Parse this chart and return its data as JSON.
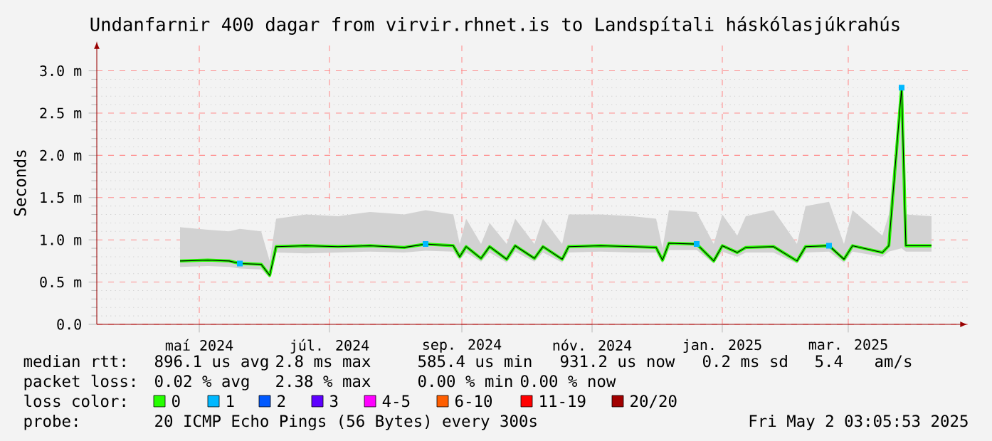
{
  "chart_data": {
    "type": "line",
    "title": "Undanfarnir 400 dagar from virvir.rhnet.is to Landspítali háskólasjúkrahús",
    "ylabel": "Seconds",
    "x": [
      "2024-04-22",
      "2024-05-05",
      "2024-05-15",
      "2024-05-20",
      "2024-05-30",
      "2024-06-03",
      "2024-06-06",
      "2024-06-20",
      "2024-07-05",
      "2024-07-20",
      "2024-08-05",
      "2024-08-15",
      "2024-08-28",
      "2024-08-31",
      "2024-09-03",
      "2024-09-10",
      "2024-09-14",
      "2024-09-22",
      "2024-09-26",
      "2024-10-05",
      "2024-10-09",
      "2024-10-18",
      "2024-10-21",
      "2024-11-05",
      "2024-11-20",
      "2024-12-01",
      "2024-12-04",
      "2024-12-07",
      "2024-12-20",
      "2024-12-28",
      "2025-01-01",
      "2025-01-08",
      "2025-01-12",
      "2025-01-25",
      "2025-02-05",
      "2025-02-09",
      "2025-02-20",
      "2025-02-27",
      "2025-03-03",
      "2025-03-17",
      "2025-03-20",
      "2025-03-26",
      "2025-03-28",
      "2025-04-09"
    ],
    "series": [
      {
        "name": "0",
        "color": "#26ff00",
        "values": [
          0.75,
          0.76,
          0.75,
          0.72,
          0.71,
          0.58,
          0.92,
          0.93,
          0.92,
          0.93,
          0.91,
          0.95,
          0.93,
          0.8,
          0.92,
          0.78,
          0.92,
          0.77,
          0.93,
          0.78,
          0.92,
          0.77,
          0.92,
          0.93,
          0.92,
          0.91,
          0.76,
          0.96,
          0.95,
          0.75,
          0.93,
          0.85,
          0.91,
          0.92,
          0.75,
          0.92,
          0.93,
          0.77,
          0.93,
          0.85,
          0.93,
          2.8,
          0.93,
          0.93
        ],
        "lower": [
          0.68,
          0.69,
          0.68,
          0.66,
          0.65,
          0.55,
          0.85,
          0.84,
          0.85,
          0.86,
          0.85,
          0.87,
          0.86,
          0.76,
          0.85,
          0.74,
          0.85,
          0.73,
          0.86,
          0.74,
          0.85,
          0.73,
          0.85,
          0.86,
          0.85,
          0.85,
          0.72,
          0.88,
          0.88,
          0.72,
          0.86,
          0.8,
          0.85,
          0.85,
          0.72,
          0.85,
          0.86,
          0.73,
          0.86,
          0.8,
          0.86,
          0.9,
          0.86,
          0.86
        ],
        "upper": [
          1.15,
          1.12,
          1.1,
          1.13,
          1.1,
          0.75,
          1.25,
          1.3,
          1.28,
          1.33,
          1.3,
          1.35,
          1.3,
          0.95,
          1.25,
          0.95,
          1.2,
          0.95,
          1.25,
          0.95,
          1.25,
          0.95,
          1.3,
          1.3,
          1.28,
          1.25,
          0.9,
          1.35,
          1.33,
          0.95,
          1.3,
          1.05,
          1.28,
          1.35,
          0.95,
          1.4,
          1.45,
          0.95,
          1.35,
          1.05,
          1.3,
          2.82,
          1.3,
          1.28
        ]
      },
      {
        "name": "1",
        "color": "#00b8ff",
        "type": "scatter",
        "marker": "square",
        "x": [
          "2024-05-20",
          "2024-08-15",
          "2024-12-20",
          "2025-02-20",
          "2025-03-26"
        ],
        "values": [
          0.72,
          0.95,
          0.95,
          0.93,
          2.8
        ]
      },
      {
        "name": "2",
        "color": "#0059ff",
        "type": "scatter",
        "values": [
          null,
          null,
          null,
          null,
          null,
          null,
          null,
          null,
          null,
          null,
          null,
          null,
          null,
          null,
          null,
          null,
          null,
          null,
          null,
          null,
          null,
          null,
          null,
          null,
          null,
          null,
          null,
          null,
          null,
          null,
          null,
          null,
          null,
          null,
          null,
          null,
          null,
          null,
          null,
          null,
          null,
          null,
          null,
          null
        ]
      },
      {
        "name": "3",
        "color": "#5e00ff",
        "type": "scatter",
        "values": [
          null,
          null,
          null,
          null,
          null,
          null,
          null,
          null,
          null,
          null,
          null,
          null,
          null,
          null,
          null,
          null,
          null,
          null,
          null,
          null,
          null,
          null,
          null,
          null,
          null,
          null,
          null,
          null,
          null,
          null,
          null,
          null,
          null,
          null,
          null,
          null,
          null,
          null,
          null,
          null,
          null,
          null,
          null,
          null
        ]
      },
      {
        "name": "4-5",
        "color": "#ff00ff",
        "type": "scatter",
        "values": [
          null,
          null,
          null,
          null,
          null,
          null,
          null,
          null,
          null,
          null,
          null,
          null,
          null,
          null,
          null,
          null,
          null,
          null,
          null,
          null,
          null,
          null,
          null,
          null,
          null,
          null,
          null,
          null,
          null,
          null,
          null,
          null,
          null,
          null,
          null,
          null,
          null,
          null,
          null,
          null,
          null,
          null,
          null,
          null
        ]
      },
      {
        "name": "6-10",
        "color": "#ff5e00",
        "type": "scatter",
        "values": [
          null,
          null,
          null,
          null,
          null,
          null,
          null,
          null,
          null,
          null,
          null,
          null,
          null,
          null,
          null,
          null,
          null,
          null,
          null,
          null,
          null,
          null,
          null,
          null,
          null,
          null,
          null,
          null,
          null,
          null,
          null,
          null,
          null,
          null,
          null,
          null,
          null,
          null,
          null,
          null,
          null,
          null,
          null,
          null
        ]
      },
      {
        "name": "11-19",
        "color": "#ff0000",
        "type": "scatter",
        "values": [
          null,
          null,
          null,
          null,
          null,
          null,
          null,
          null,
          null,
          null,
          null,
          null,
          null,
          null,
          null,
          null,
          null,
          null,
          null,
          null,
          null,
          null,
          null,
          null,
          null,
          null,
          null,
          null,
          null,
          null,
          null,
          null,
          null,
          null,
          null,
          null,
          null,
          null,
          null,
          null,
          null,
          null,
          null,
          null
        ]
      },
      {
        "name": "20/20",
        "color": "#a10000",
        "type": "scatter",
        "values": [
          null,
          null,
          null,
          null,
          null,
          null,
          null,
          null,
          null,
          null,
          null,
          null,
          null,
          null,
          null,
          null,
          null,
          null,
          null,
          null,
          null,
          null,
          null,
          null,
          null,
          null,
          null,
          null,
          null,
          null,
          null,
          null,
          null,
          null,
          null,
          null,
          null,
          null,
          null,
          null,
          null,
          null,
          null,
          null
        ]
      }
    ],
    "xlim": [
      "2024-03-14",
      "2025-04-26"
    ],
    "xticks": [
      {
        "value": "2024-05-01",
        "label": "maí 2024"
      },
      {
        "value": "2024-07-01",
        "label": "júl. 2024"
      },
      {
        "value": "2024-09-01",
        "label": "sep. 2024"
      },
      {
        "value": "2024-11-01",
        "label": "nóv. 2024"
      },
      {
        "value": "2025-01-01",
        "label": "jan. 2025"
      },
      {
        "value": "2025-03-01",
        "label": "mar. 2025"
      }
    ],
    "ylim": [
      0,
      3.35
    ],
    "yticks": [
      {
        "value": 0,
        "label": "0.0"
      },
      {
        "value": 0.5,
        "label": "0.5 m"
      },
      {
        "value": 1,
        "label": "1.0 m"
      },
      {
        "value": 1.5,
        "label": "1.5 m"
      },
      {
        "value": 2,
        "label": "2.0 m"
      },
      {
        "value": 2.5,
        "label": "2.5 m"
      },
      {
        "value": 3,
        "label": "3.0 m"
      }
    ],
    "grid": true,
    "legend": "bottom",
    "legend_title": "loss color:",
    "marker": "none",
    "annotations": [
      "median rtt:",
      "896.1 us avg",
      "2.8 ms max",
      "585.4 us min",
      "931.2 us now",
      "0.2 ms sd",
      "5.4",
      "am/s",
      "packet loss:",
      "0.02 % avg",
      "2.38 % max",
      "0.00 % min",
      "0.00 % now",
      "probe:",
      "20 ICMP Echo Pings (56 Bytes) every 300s",
      "Fri May 2 03:05:53 2025"
    ]
  }
}
